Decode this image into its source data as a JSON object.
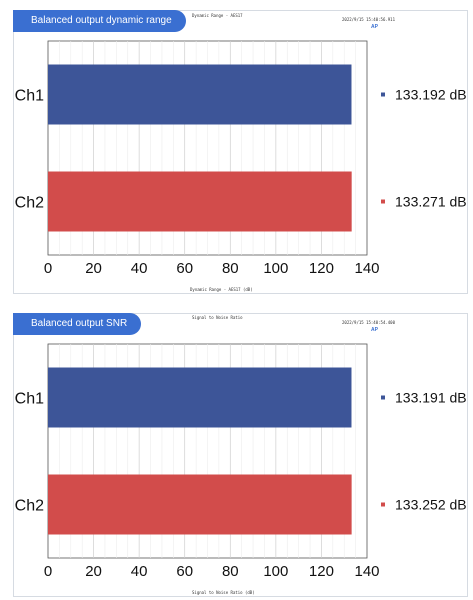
{
  "chart_data": [
    {
      "type": "bar",
      "orientation": "horizontal",
      "badge": "Balanced output dynamic range",
      "title": "Dynamic Range - AES17",
      "timestamp": "2022/9/15 15:40:56.911",
      "xlabel": "Dynamic Range - AES17 (dB)",
      "logo": "AP",
      "categories": [
        "Ch1",
        "Ch2"
      ],
      "values": [
        133.192,
        133.271
      ],
      "value_labels": [
        "133.192 dB",
        "133.271 dB"
      ],
      "colors": [
        "#3d5598",
        "#d24c4b"
      ],
      "xlim": [
        0,
        140
      ],
      "xticks": [
        0,
        20,
        40,
        60,
        80,
        100,
        120,
        140
      ],
      "grid": true
    },
    {
      "type": "bar",
      "orientation": "horizontal",
      "badge": "Balanced output SNR",
      "title": "Signal to Noise Ratio",
      "timestamp": "2022/9/15 15:40:54.400",
      "xlabel": "Signal to Noise Ratio (dB)",
      "logo": "AP",
      "categories": [
        "Ch1",
        "Ch2"
      ],
      "values": [
        133.191,
        133.252
      ],
      "value_labels": [
        "133.191 dB",
        "133.252 dB"
      ],
      "colors": [
        "#3d5598",
        "#d24c4b"
      ],
      "xlim": [
        0,
        140
      ],
      "xticks": [
        0,
        20,
        40,
        60,
        80,
        100,
        120,
        140
      ],
      "grid": true
    }
  ]
}
